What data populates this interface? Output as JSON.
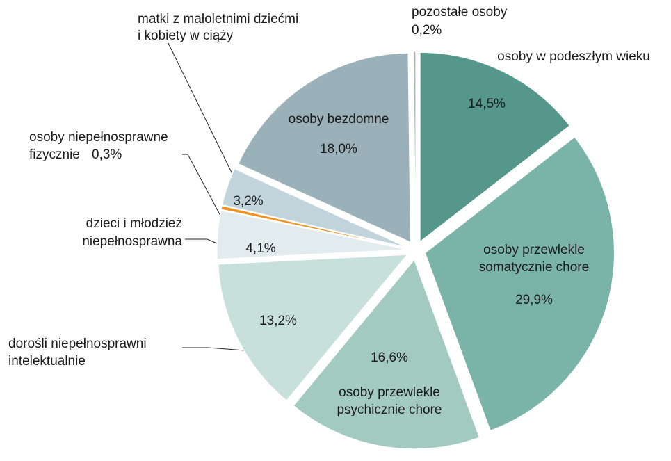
{
  "chart_data": {
    "type": "pie",
    "categories": [
      [
        "osoby w podeszłym wieku"
      ],
      [
        "osoby przewlekle",
        "somatycznie chore"
      ],
      [
        "osoby przewlekle",
        "psychicznie chore"
      ],
      [
        "dorośli niepełnosprawni",
        "intelektualnie"
      ],
      [
        "dzieci i młodzież",
        "niepełnosprawna"
      ],
      [
        "osoby niepełnosprawne",
        "fizycznie"
      ],
      [
        "matki z małoletnimi dziećmi",
        "i kobiety w ciąży"
      ],
      [
        "osoby bezdomne"
      ],
      [
        "pozostałe osoby"
      ]
    ],
    "values": [
      14.5,
      29.9,
      16.6,
      13.2,
      4.1,
      0.3,
      3.2,
      18.0,
      0.2
    ],
    "value_labels": [
      "14,5%",
      "29,9%",
      "16,6%",
      "13,2%",
      "4,1%",
      "0,3%",
      "3,2%",
      "18,0%",
      "0,2%"
    ],
    "colors": [
      "#55978a",
      "#7ab3a7",
      "#a3cac1",
      "#c8e0db",
      "#e2ebee",
      "#f0901e",
      "#c1d4dc",
      "#9bb1b9",
      "#b4b4b4"
    ]
  }
}
